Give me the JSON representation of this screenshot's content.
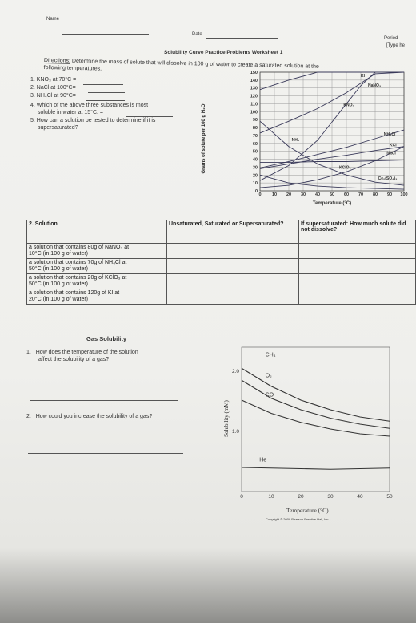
{
  "header": {
    "name_label": "Name",
    "date_label": "Date",
    "period_label": "Period",
    "type_label": "[Type he"
  },
  "worksheet": {
    "title": "Solubility Curve Practice Problems Worksheet 1",
    "directions_label": "Directions:",
    "directions_text": "Determine the mass of solute that will dissolve in 100 g of water to create a saturated solution at the",
    "directions_text2": "following temperatures.",
    "questions": [
      {
        "num": "1.",
        "text": "KNO₃ at 70°C ="
      },
      {
        "num": "2.",
        "text": "NaCl at 100°C="
      },
      {
        "num": "3.",
        "text": "NH₄Cl at 90°C="
      },
      {
        "num": "4.",
        "text": "Which of the above three substances is most",
        "text2": "soluble in water at 15°C. ="
      },
      {
        "num": "5.",
        "text": "How can a solution be tested to determine if it is",
        "text2": "supersaturated?"
      }
    ]
  },
  "table": {
    "headers": [
      "2. Solution",
      "Unsaturated, Saturated or Supersaturated?",
      "If supersaturated: How much solute did not dissolve?"
    ],
    "rows": [
      {
        "line1": "a solution that contains 80g of NaNO₃ at",
        "line2": "10°C (in 100 g of water)"
      },
      {
        "line1": "a solution that contains 70g of NH₄Cl at",
        "line2": "50°C (in 100 g of water)"
      },
      {
        "line1": "a solution that contains 20g of KClO₃ at",
        "line2": "50°C (in 100 g of water)"
      },
      {
        "line1": "a solution that contains 120g of KI at",
        "line2": "20°C   (in 100 g of water)"
      }
    ]
  },
  "gas": {
    "title": "Gas Solubility",
    "q1": {
      "num": "1.",
      "text": "How does the temperature of the solution",
      "text2": "affect the solubility of a gas?"
    },
    "q2": {
      "num": "2.",
      "text": "How could you increase the solubility of a gas?"
    }
  },
  "chart_data": [
    {
      "type": "line",
      "xlabel": "Temperature (°C)",
      "ylabel": "Grams of solute per 100 g H₂O",
      "xlim": [
        0,
        100
      ],
      "ylim": [
        0,
        150
      ],
      "x_ticks": [
        0,
        10,
        20,
        30,
        40,
        50,
        60,
        70,
        80,
        90,
        100
      ],
      "y_ticks": [
        0,
        10,
        20,
        30,
        40,
        50,
        60,
        70,
        80,
        90,
        100,
        110,
        120,
        130,
        140,
        150
      ],
      "grid": true,
      "series": [
        {
          "name": "KI",
          "x": [
            0,
            20,
            40,
            60,
            80,
            100
          ],
          "y": [
            128,
            140,
            150,
            150,
            150,
            150
          ]
        },
        {
          "name": "NaNO₃",
          "x": [
            0,
            20,
            40,
            60,
            80,
            100
          ],
          "y": [
            73,
            88,
            104,
            124,
            148,
            150
          ]
        },
        {
          "name": "KNO₃",
          "x": [
            0,
            20,
            40,
            60,
            70,
            80,
            100
          ],
          "y": [
            13,
            32,
            64,
            110,
            133,
            150,
            150
          ]
        },
        {
          "name": "NH₃",
          "x": [
            0,
            20,
            40,
            60,
            80,
            100
          ],
          "y": [
            88,
            56,
            34,
            20,
            11,
            7
          ]
        },
        {
          "name": "NH₄Cl",
          "x": [
            0,
            20,
            40,
            60,
            80,
            100
          ],
          "y": [
            29,
            37,
            46,
            55,
            66,
            77
          ]
        },
        {
          "name": "KCl",
          "x": [
            0,
            20,
            40,
            60,
            80,
            100
          ],
          "y": [
            28,
            34,
            40,
            45,
            51,
            56
          ]
        },
        {
          "name": "NaCl",
          "x": [
            0,
            20,
            40,
            60,
            80,
            100
          ],
          "y": [
            36,
            36,
            37,
            37,
            38,
            39
          ]
        },
        {
          "name": "KClO₃",
          "x": [
            0,
            20,
            40,
            60,
            80,
            100
          ],
          "y": [
            4,
            7,
            14,
            24,
            38,
            56
          ]
        },
        {
          "name": "Ce₂(SO₄)₃",
          "x": [
            0,
            20,
            40,
            60,
            80,
            100
          ],
          "y": [
            20,
            10,
            6,
            4,
            3,
            2
          ]
        }
      ]
    },
    {
      "type": "line",
      "xlabel": "Temperature (°C)",
      "ylabel": "Solubility (mM)",
      "xlim": [
        0,
        50
      ],
      "ylim": [
        0,
        2.4
      ],
      "x_ticks": [
        0,
        10,
        20,
        30,
        40,
        50
      ],
      "y_ticks": [
        1.0,
        2.0
      ],
      "series": [
        {
          "name": "CH₄",
          "x": [
            0,
            10,
            20,
            30,
            40,
            50
          ],
          "y": [
            2.05,
            1.75,
            1.52,
            1.36,
            1.24,
            1.17
          ]
        },
        {
          "name": "O₂",
          "x": [
            0,
            10,
            20,
            30,
            40,
            50
          ],
          "y": [
            1.85,
            1.55,
            1.36,
            1.22,
            1.12,
            1.05
          ]
        },
        {
          "name": "CO",
          "x": [
            0,
            10,
            20,
            30,
            40,
            50
          ],
          "y": [
            1.52,
            1.3,
            1.15,
            1.04,
            0.96,
            0.92
          ]
        },
        {
          "name": "He",
          "x": [
            0,
            10,
            20,
            30,
            40,
            50
          ],
          "y": [
            0.4,
            0.39,
            0.38,
            0.37,
            0.38,
            0.39
          ]
        }
      ],
      "note": "Copyright © 2009 Pearson Prentice Hall, Inc."
    }
  ]
}
